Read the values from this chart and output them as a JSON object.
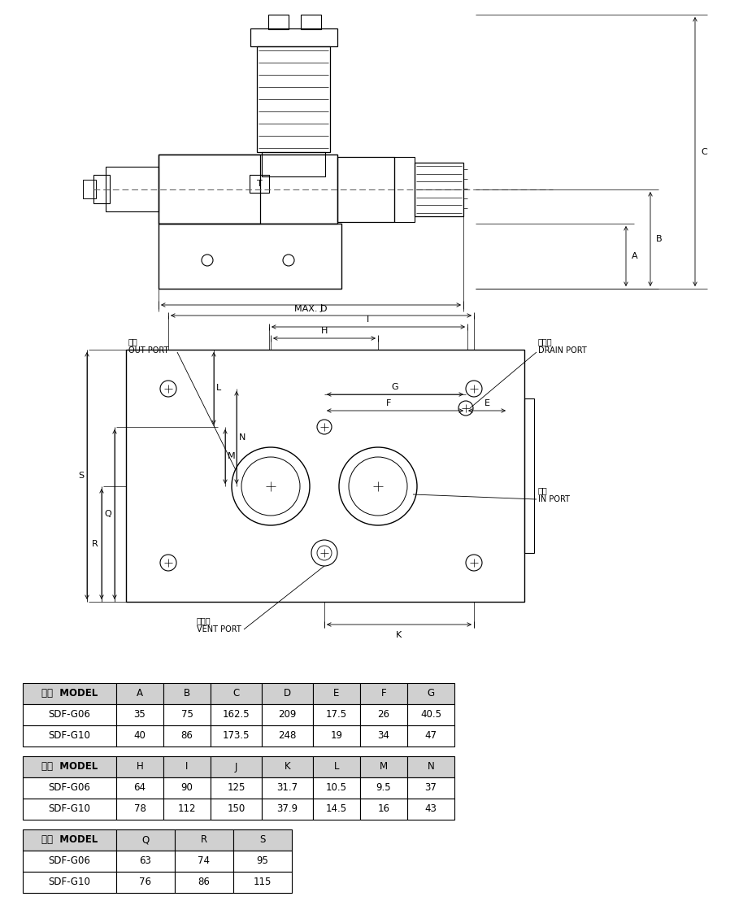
{
  "table1_headers": [
    "型式  MODEL",
    "A",
    "B",
    "C",
    "D",
    "E",
    "F",
    "G"
  ],
  "table1_rows": [
    [
      "SDF-G06",
      "35",
      "75",
      "162.5",
      "209",
      "17.5",
      "26",
      "40.5"
    ],
    [
      "SDF-G10",
      "40",
      "86",
      "173.5",
      "248",
      "19",
      "34",
      "47"
    ]
  ],
  "table2_headers": [
    "型式  MODEL",
    "H",
    "I",
    "J",
    "K",
    "L",
    "M",
    "N"
  ],
  "table2_rows": [
    [
      "SDF-G06",
      "64",
      "90",
      "125",
      "31.7",
      "10.5",
      "9.5",
      "37"
    ],
    [
      "SDF-G10",
      "78",
      "112",
      "150",
      "37.9",
      "14.5",
      "16",
      "43"
    ]
  ],
  "table3_headers": [
    "型式  MODEL",
    "Q",
    "R",
    "S"
  ],
  "table3_rows": [
    [
      "SDF-G06",
      "63",
      "74",
      "95"
    ],
    [
      "SDF-G10",
      "76",
      "86",
      "115"
    ]
  ],
  "header_bg": "#d0d0d0",
  "line_color": "#000000",
  "text_color": "#000000"
}
